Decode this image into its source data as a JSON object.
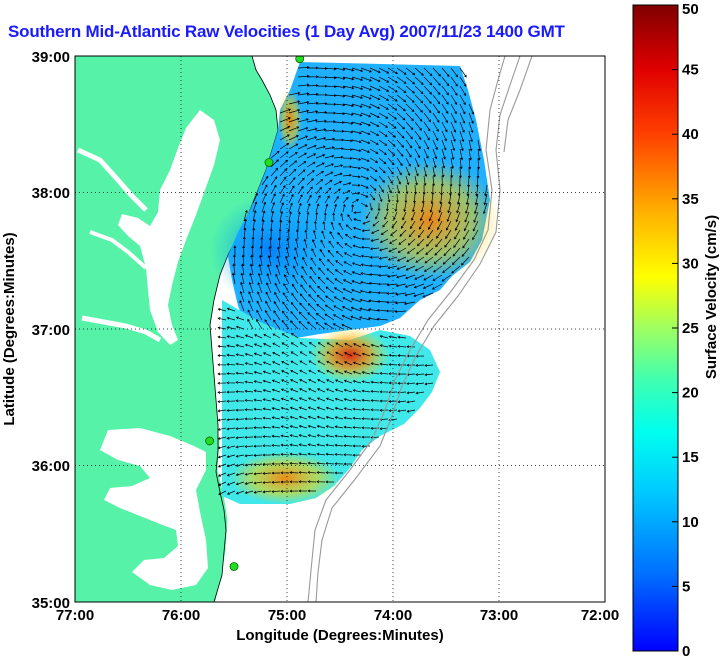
{
  "title": "Southern Mid-Atlantic Raw Velocities (1 Day Avg) 2007/11/23 1400 GMT",
  "axes": {
    "xlabel": "Longitude (Degrees:Minutes)",
    "ylabel": "Latitude (Degrees:Minutes)",
    "xticks": [
      "77:00",
      "76:00",
      "75:00",
      "74:00",
      "73:00",
      "72:00"
    ],
    "yticks": [
      "39:00",
      "38:00",
      "37:00",
      "36:00",
      "35:00"
    ],
    "xlim": [
      -77,
      -72
    ],
    "ylim": [
      35,
      39
    ],
    "grid": true
  },
  "colorbar": {
    "label": "Surface Velocity (cm/s)",
    "ticks": [
      "0",
      "5",
      "10",
      "15",
      "20",
      "25",
      "30",
      "35",
      "40",
      "45",
      "50"
    ],
    "range": [
      0,
      50
    ],
    "colormap": "jet"
  },
  "colors": {
    "land": "#55f2a8",
    "water": "#ffffff",
    "title": "#1a1aff",
    "station_marker": "#22dd22",
    "bathymetry": "#999999"
  },
  "stations": [
    {
      "lon": -74.88,
      "lat": 38.98
    },
    {
      "lon": -75.17,
      "lat": 38.22
    },
    {
      "lon": -75.73,
      "lat": 36.18
    },
    {
      "lon": -75.5,
      "lat": 35.26
    }
  ]
}
